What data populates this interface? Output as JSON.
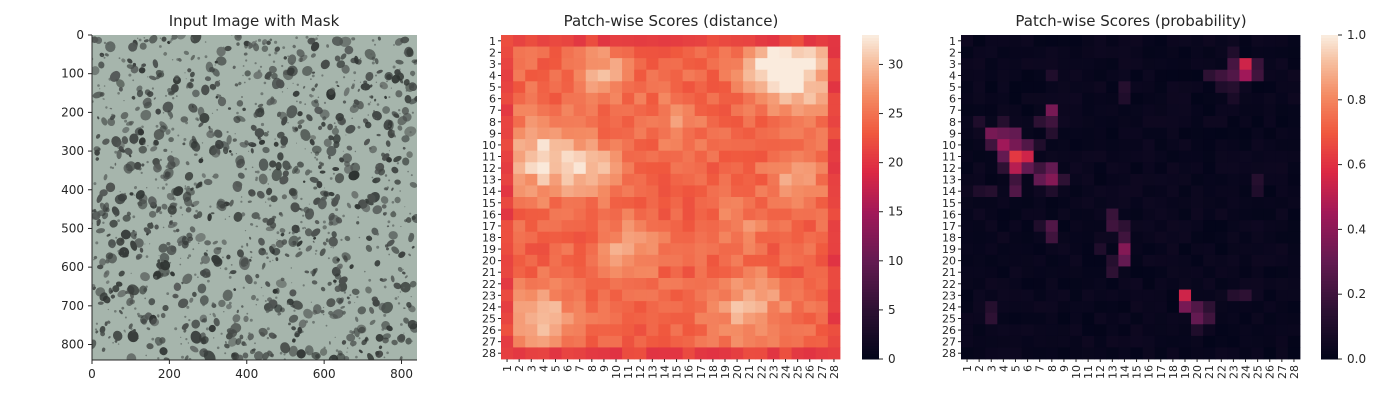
{
  "chart_data": [
    {
      "type": "image",
      "title": "Input Image with Mask",
      "xlim": [
        0,
        840
      ],
      "ylim": [
        840,
        0
      ],
      "xticks": [
        0,
        200,
        400,
        600,
        800
      ],
      "yticks": [
        0,
        100,
        200,
        300,
        400,
        500,
        600,
        700,
        800
      ],
      "xtick_labels": [
        "0",
        "200",
        "400",
        "600",
        "800"
      ],
      "ytick_labels": [
        "0",
        "100",
        "200",
        "300",
        "400",
        "500",
        "600",
        "700",
        "800"
      ],
      "colors": {
        "background": "#a6b5ac",
        "spots": "#3f4442"
      }
    },
    {
      "type": "heatmap",
      "title": "Patch-wise Scores (distance)",
      "rows": 28,
      "cols": 28,
      "tick_labels": [
        "1",
        "2",
        "3",
        "4",
        "5",
        "6",
        "7",
        "8",
        "9",
        "10",
        "11",
        "12",
        "13",
        "14",
        "15",
        "16",
        "17",
        "18",
        "19",
        "20",
        "21",
        "22",
        "23",
        "24",
        "25",
        "26",
        "27",
        "28"
      ],
      "vmin": 0,
      "vmax": 33,
      "colorbar_ticks": [
        0,
        5,
        10,
        15,
        20,
        25,
        30
      ],
      "colorbar_labels": [
        "0",
        "5",
        "10",
        "15",
        "20",
        "25",
        "30"
      ],
      "base": 24,
      "border_value": 20,
      "hotspots": [
        {
          "r": 4,
          "c": 25,
          "v": 32,
          "s": 2.2
        },
        {
          "r": 3,
          "c": 23,
          "v": 31,
          "s": 1.8
        },
        {
          "r": 11,
          "c": 4,
          "v": 32,
          "s": 2.2
        },
        {
          "r": 12,
          "c": 8,
          "v": 30,
          "s": 1.6
        },
        {
          "r": 25,
          "c": 4,
          "v": 31,
          "s": 1.8
        },
        {
          "r": 24,
          "c": 21,
          "v": 30,
          "s": 2.0
        },
        {
          "r": 13,
          "c": 25,
          "v": 29,
          "s": 1.5
        },
        {
          "r": 19,
          "c": 11,
          "v": 29,
          "s": 1.6
        },
        {
          "r": 4,
          "c": 9,
          "v": 29,
          "s": 1.6
        },
        {
          "r": 8,
          "c": 15,
          "v": 27,
          "s": 1.5
        },
        {
          "r": 17,
          "c": 20,
          "v": 27,
          "s": 1.5
        }
      ]
    },
    {
      "type": "heatmap",
      "title": "Patch-wise Scores (probability)",
      "rows": 28,
      "cols": 28,
      "tick_labels": [
        "1",
        "2",
        "3",
        "4",
        "5",
        "6",
        "7",
        "8",
        "9",
        "10",
        "11",
        "12",
        "13",
        "14",
        "15",
        "16",
        "17",
        "18",
        "19",
        "20",
        "21",
        "22",
        "23",
        "24",
        "25",
        "26",
        "27",
        "28"
      ],
      "vmin": 0,
      "vmax": 1,
      "colorbar_ticks": [
        0,
        0.2,
        0.4,
        0.6,
        0.8,
        1.0
      ],
      "colorbar_labels": [
        "0.0",
        "0.2",
        "0.4",
        "0.6",
        "0.8",
        "1.0"
      ],
      "cells": [
        {
          "r": 3,
          "c": 24,
          "v": 0.55
        },
        {
          "r": 4,
          "c": 24,
          "v": 0.45
        },
        {
          "r": 3,
          "c": 23,
          "v": 0.22
        },
        {
          "r": 4,
          "c": 23,
          "v": 0.25
        },
        {
          "r": 4,
          "c": 22,
          "v": 0.2
        },
        {
          "r": 4,
          "c": 21,
          "v": 0.15
        },
        {
          "r": 3,
          "c": 25,
          "v": 0.18
        },
        {
          "r": 4,
          "c": 25,
          "v": 0.2
        },
        {
          "r": 2,
          "c": 23,
          "v": 0.1
        },
        {
          "r": 5,
          "c": 22,
          "v": 0.1
        },
        {
          "r": 5,
          "c": 23,
          "v": 0.12
        },
        {
          "r": 6,
          "c": 23,
          "v": 0.08
        },
        {
          "r": 9,
          "c": 3,
          "v": 0.35
        },
        {
          "r": 9,
          "c": 4,
          "v": 0.32
        },
        {
          "r": 9,
          "c": 5,
          "v": 0.3
        },
        {
          "r": 10,
          "c": 3,
          "v": 0.2
        },
        {
          "r": 10,
          "c": 4,
          "v": 0.45
        },
        {
          "r": 10,
          "c": 5,
          "v": 0.35
        },
        {
          "r": 10,
          "c": 6,
          "v": 0.25
        },
        {
          "r": 11,
          "c": 4,
          "v": 0.3
        },
        {
          "r": 11,
          "c": 5,
          "v": 0.62
        },
        {
          "r": 11,
          "c": 6,
          "v": 0.55
        },
        {
          "r": 12,
          "c": 5,
          "v": 0.5
        },
        {
          "r": 12,
          "c": 6,
          "v": 0.3
        },
        {
          "r": 12,
          "c": 4,
          "v": 0.15
        },
        {
          "r": 13,
          "c": 5,
          "v": 0.2
        },
        {
          "r": 14,
          "c": 5,
          "v": 0.25
        },
        {
          "r": 8,
          "c": 4,
          "v": 0.12
        },
        {
          "r": 8,
          "c": 2,
          "v": 0.1
        },
        {
          "r": 7,
          "c": 8,
          "v": 0.35
        },
        {
          "r": 8,
          "c": 8,
          "v": 0.2
        },
        {
          "r": 8,
          "c": 7,
          "v": 0.15
        },
        {
          "r": 9,
          "c": 8,
          "v": 0.12
        },
        {
          "r": 10,
          "c": 7,
          "v": 0.1
        },
        {
          "r": 12,
          "c": 8,
          "v": 0.3
        },
        {
          "r": 13,
          "c": 8,
          "v": 0.38
        },
        {
          "r": 13,
          "c": 7,
          "v": 0.3
        },
        {
          "r": 12,
          "c": 7,
          "v": 0.2
        },
        {
          "r": 13,
          "c": 9,
          "v": 0.15
        },
        {
          "r": 14,
          "c": 8,
          "v": 0.1
        },
        {
          "r": 17,
          "c": 8,
          "v": 0.25
        },
        {
          "r": 18,
          "c": 8,
          "v": 0.2
        },
        {
          "r": 17,
          "c": 7,
          "v": 0.1
        },
        {
          "r": 16,
          "c": 13,
          "v": 0.18
        },
        {
          "r": 17,
          "c": 13,
          "v": 0.2
        },
        {
          "r": 17,
          "c": 14,
          "v": 0.15
        },
        {
          "r": 18,
          "c": 14,
          "v": 0.2
        },
        {
          "r": 19,
          "c": 14,
          "v": 0.38
        },
        {
          "r": 20,
          "c": 14,
          "v": 0.3
        },
        {
          "r": 20,
          "c": 13,
          "v": 0.12
        },
        {
          "r": 21,
          "c": 13,
          "v": 0.15
        },
        {
          "r": 19,
          "c": 12,
          "v": 0.1
        },
        {
          "r": 23,
          "c": 19,
          "v": 0.55
        },
        {
          "r": 24,
          "c": 19,
          "v": 0.35
        },
        {
          "r": 24,
          "c": 20,
          "v": 0.25
        },
        {
          "r": 25,
          "c": 20,
          "v": 0.3
        },
        {
          "r": 25,
          "c": 21,
          "v": 0.2
        },
        {
          "r": 24,
          "c": 21,
          "v": 0.15
        },
        {
          "r": 23,
          "c": 23,
          "v": 0.12
        },
        {
          "r": 23,
          "c": 24,
          "v": 0.15
        },
        {
          "r": 26,
          "c": 20,
          "v": 0.1
        },
        {
          "r": 5,
          "c": 14,
          "v": 0.12
        },
        {
          "r": 6,
          "c": 14,
          "v": 0.1
        },
        {
          "r": 4,
          "c": 8,
          "v": 0.1
        },
        {
          "r": 13,
          "c": 25,
          "v": 0.12
        },
        {
          "r": 14,
          "c": 25,
          "v": 0.1
        },
        {
          "r": 25,
          "c": 3,
          "v": 0.15
        },
        {
          "r": 24,
          "c": 3,
          "v": 0.12
        },
        {
          "r": 14,
          "c": 2,
          "v": 0.1
        },
        {
          "r": 14,
          "c": 3,
          "v": 0.12
        }
      ]
    }
  ]
}
